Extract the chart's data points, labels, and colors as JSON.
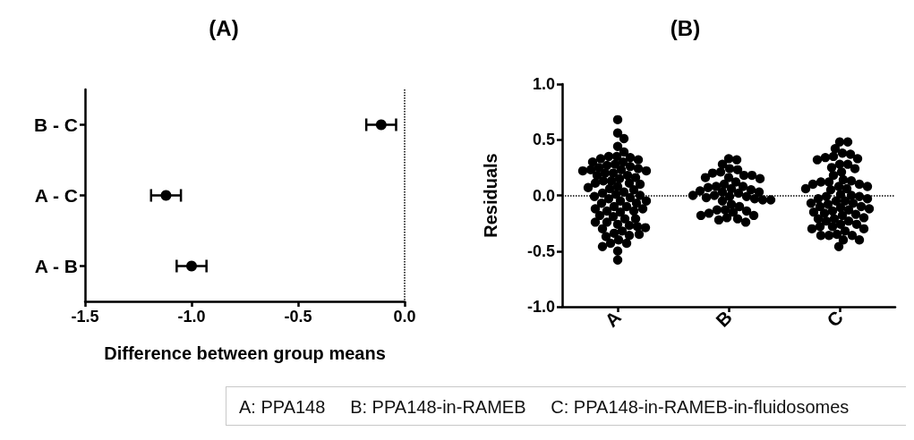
{
  "chart_data": [
    {
      "type": "scatter",
      "title": "(A)",
      "xlabel": "Difference between group means",
      "orientation": "horizontal",
      "categories": [
        "B - C",
        "A - C",
        "A - B"
      ],
      "series": [
        {
          "color": "#000000",
          "values": [
            -0.11,
            -1.12,
            -1.0
          ],
          "errors": [
            [
              -0.18,
              -0.04
            ],
            [
              -1.19,
              -1.05
            ],
            [
              -1.07,
              -0.93
            ]
          ]
        }
      ],
      "xlim": [
        -1.5,
        0
      ],
      "xticks": [
        {
          "value": -1.5,
          "label": "-1.5"
        },
        {
          "value": -1,
          "label": "-1.0"
        },
        {
          "value": -0.5,
          "label": "-0.5"
        },
        {
          "value": 0,
          "label": "0.0"
        }
      ],
      "ref_lines": [
        {
          "axis": "x",
          "value": 0,
          "label": null,
          "line_style": "dotted"
        }
      ],
      "grid": false,
      "marker": "circle"
    },
    {
      "type": "scatter",
      "title": "(B)",
      "ylabel": "Residuals",
      "categories": [
        "A",
        "B",
        "C"
      ],
      "series": [
        {
          "color": "#000000",
          "x": [
            "A",
            "A",
            "A",
            "A",
            "A",
            "A",
            "A",
            "A",
            "A",
            "A",
            "A",
            "A",
            "A",
            "A",
            "A",
            "A",
            "A",
            "A",
            "A",
            "A",
            "A",
            "A",
            "A",
            "A",
            "A",
            "A",
            "A",
            "A",
            "A",
            "A",
            "A",
            "A",
            "A",
            "A",
            "A",
            "A",
            "A",
            "A",
            "A",
            "A",
            "A",
            "A",
            "A",
            "A",
            "A",
            "A",
            "A",
            "A",
            "A",
            "A",
            "A",
            "A",
            "A",
            "A",
            "A",
            "A",
            "A",
            "A",
            "A",
            "A",
            "A",
            "A",
            "A",
            "A",
            "A",
            "A",
            "A",
            "A",
            "A",
            "A"
          ],
          "values": [
            0.68,
            0.56,
            0.51,
            0.44,
            0.39,
            0.35,
            0.34,
            0.32,
            0.33,
            0.35,
            0.3,
            0.28,
            0.26,
            0.24,
            0.23,
            0.22,
            0.22,
            0.23,
            0.25,
            0.27,
            0.3,
            0.2,
            0.18,
            0.15,
            0.13,
            0.11,
            0.1,
            0.11,
            0.13,
            0.16,
            0.18,
            0.2,
            0.08,
            0.06,
            0.03,
            0.01,
            -0.01,
            -0.03,
            -0.02,
            0.0,
            0.02,
            0.05,
            0.07,
            -0.05,
            -0.07,
            -0.1,
            -0.12,
            -0.14,
            -0.15,
            -0.14,
            -0.12,
            -0.1,
            -0.07,
            -0.05,
            -0.18,
            -0.21,
            -0.24,
            -0.26,
            -0.28,
            -0.3,
            -0.29,
            -0.27,
            -0.24,
            -0.21,
            -0.19,
            -0.32,
            -0.34,
            -0.36,
            -0.37,
            -0.4
          ]
        },
        {
          "color": "#000000",
          "x": [
            "A",
            "A",
            "A",
            "A",
            "A",
            "A",
            "B",
            "B",
            "B",
            "B",
            "B",
            "B",
            "B",
            "B",
            "B",
            "B",
            "B",
            "B",
            "B",
            "B",
            "B",
            "B",
            "B",
            "B",
            "B",
            "B",
            "B",
            "B",
            "B",
            "B",
            "B",
            "B",
            "B",
            "B",
            "B",
            "B",
            "B",
            "B",
            "B",
            "B",
            "B",
            "B",
            "B",
            "B",
            "B",
            "B",
            "B",
            "B",
            "B",
            "B",
            "B"
          ],
          "values": [
            -0.43,
            -0.43,
            -0.46,
            -0.5,
            -0.58,
            -0.35,
            0.33,
            0.32,
            0.28,
            0.23,
            0.2,
            0.18,
            0.16,
            0.15,
            0.16,
            0.18,
            0.21,
            0.24,
            0.08,
            0.06,
            0.04,
            0.03,
            0.02,
            0.03,
            0.05,
            0.07,
            0.08,
            0.0,
            -0.01,
            -0.03,
            -0.04,
            -0.05,
            -0.04,
            -0.02,
            -0.01,
            0.0,
            -0.13,
            -0.14,
            -0.16,
            -0.18,
            -0.2,
            -0.22,
            -0.24,
            -0.21,
            -0.18,
            -0.15,
            -0.13,
            0.1,
            -0.08,
            0.12,
            -0.1
          ]
        },
        {
          "color": "#000000",
          "x": [
            "C",
            "C",
            "C",
            "C",
            "C",
            "C",
            "C",
            "C",
            "C",
            "C",
            "C",
            "C",
            "C",
            "C",
            "C",
            "C",
            "C",
            "C",
            "C",
            "C",
            "C",
            "C",
            "C",
            "C",
            "C",
            "C",
            "C",
            "C",
            "C",
            "C",
            "C",
            "C",
            "C",
            "C",
            "C",
            "C",
            "C",
            "C",
            "C",
            "C",
            "C",
            "C",
            "C",
            "C",
            "C",
            "C",
            "C",
            "C",
            "C",
            "C",
            "C",
            "C",
            "C",
            "C",
            "C",
            "C",
            "C",
            "C",
            "C",
            "C",
            "C",
            "C",
            "C",
            "C",
            "C",
            "C"
          ],
          "values": [
            0.48,
            0.48,
            0.42,
            0.38,
            0.37,
            0.35,
            0.34,
            0.32,
            0.33,
            0.28,
            0.28,
            0.25,
            0.24,
            0.21,
            0.18,
            0.14,
            0.12,
            0.1,
            0.08,
            0.06,
            0.05,
            0.06,
            0.08,
            0.1,
            0.12,
            0.13,
            0.01,
            -0.01,
            -0.03,
            -0.05,
            -0.07,
            -0.08,
            -0.07,
            -0.05,
            -0.03,
            -0.01,
            0.0,
            -0.1,
            -0.12,
            -0.14,
            -0.16,
            -0.18,
            -0.2,
            -0.17,
            -0.15,
            -0.13,
            -0.11,
            -0.1,
            -0.21,
            -0.23,
            -0.26,
            -0.28,
            -0.3,
            -0.32,
            -0.3,
            -0.28,
            -0.26,
            -0.23,
            -0.21,
            -0.36,
            -0.36,
            -0.36,
            -0.35,
            -0.4,
            -0.4,
            -0.46
          ]
        }
      ],
      "ylim": [
        -1,
        1
      ],
      "yticks": [
        {
          "value": -1,
          "label": "-1.0"
        },
        {
          "value": -0.5,
          "label": "-0.5"
        },
        {
          "value": 0,
          "label": "0.0"
        },
        {
          "value": 0.5,
          "label": "0.5"
        },
        {
          "value": 1,
          "label": "1.0"
        }
      ],
      "ref_lines": [
        {
          "axis": "y",
          "value": 0,
          "label": null,
          "line_style": "dotted"
        }
      ],
      "grid": false,
      "marker": "circle",
      "annotations": [
        "A: PPA148     B: PPA148-in-RAMEB     C: PPA148-in-RAMEB-in-fluidosomes"
      ]
    }
  ]
}
